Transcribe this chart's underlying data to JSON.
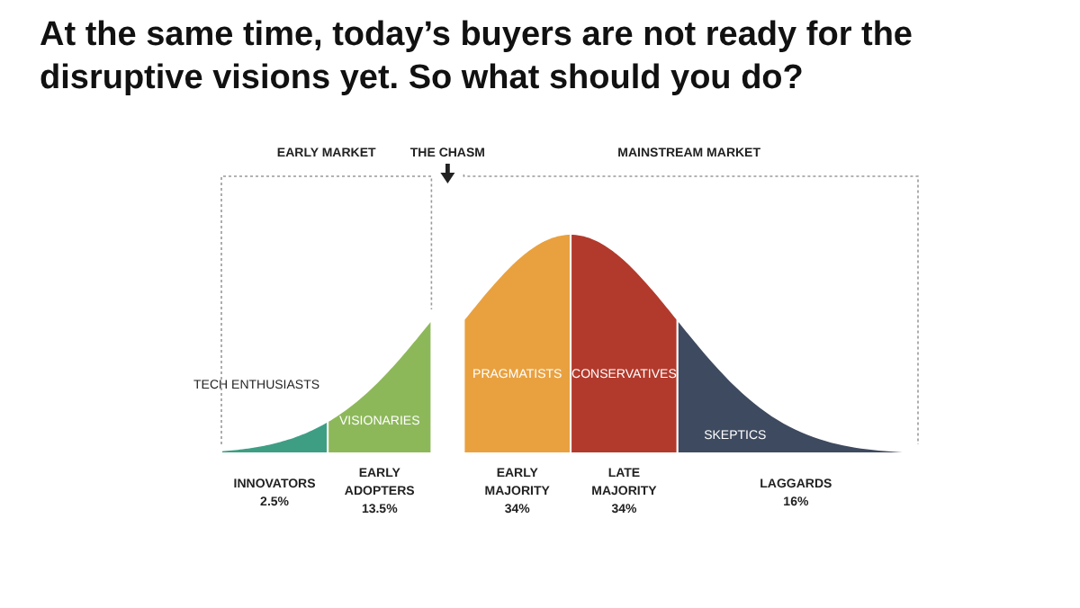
{
  "chart_data": {
    "type": "other",
    "title": "At the same time, today’s buyers are not ready for the disruptive visions yet.  So what should you do?",
    "categories": [
      "INNOVATORS",
      "EARLY ADOPTERS",
      "EARLY MAJORITY",
      "LATE MAJORITY",
      "LAGGARDS"
    ],
    "values": [
      2.5,
      13.5,
      34,
      34,
      16
    ],
    "value_labels": [
      "2.5%",
      "13.5%",
      "34%",
      "34%",
      "16%"
    ],
    "colors": [
      "#3e9e84",
      "#8db85a",
      "#e9a13f",
      "#b23a2c",
      "#3e4a5f"
    ],
    "annotations": [
      {
        "text": "TECH ENTHUSIASTS",
        "x": "INNOVATORS"
      },
      {
        "text": "VISIONARIES",
        "x": "EARLY ADOPTERS"
      },
      {
        "text": "PRAGMATISTS",
        "x": "EARLY MAJORITY"
      },
      {
        "text": "CONSERVATIVES",
        "x": "LATE MAJORITY"
      },
      {
        "text": "SKEPTICS",
        "x": "LAGGARDS"
      },
      "EARLY MARKET",
      "THE CHASM",
      "MAINSTREAM MARKET"
    ]
  }
}
